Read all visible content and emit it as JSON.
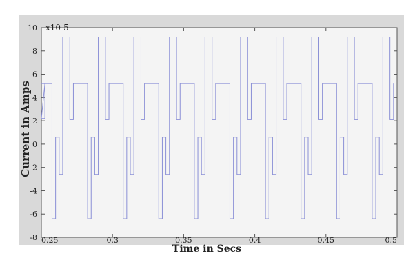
{
  "chart_data": {
    "type": "line",
    "title": "",
    "xlabel": "Time in Secs",
    "ylabel": "Current in Amps",
    "y_multiplier_label": "x10-5",
    "xlim": [
      0.25,
      0.5
    ],
    "ylim": [
      -8,
      10
    ],
    "x_ticks": [
      0.25,
      0.3,
      0.35,
      0.4,
      0.45,
      0.5
    ],
    "x_tick_labels": [
      "0.25",
      "0.3",
      "0.35",
      "0.4",
      "0.45",
      "0.5"
    ],
    "y_ticks": [
      -8,
      -6,
      -4,
      -2,
      0,
      2,
      4,
      6,
      8,
      10
    ],
    "y_tick_labels": [
      "-8",
      "-6",
      "-4",
      "-2",
      "0",
      "2",
      "4",
      "6",
      "8",
      "10"
    ],
    "grid": false,
    "legend": "none",
    "line_color": "#8a8fd6",
    "frame_bg": "#d9d9d9",
    "plot_bg": "#f4f4f4",
    "series": [
      {
        "points": [
          [
            0.25,
            5.2
          ],
          [
            0.2525,
            5.2
          ],
          [
            0.2525,
            2.2
          ],
          [
            0.25,
            2.2
          ]
        ],
        "period": 0.025,
        "start": 0.2525,
        "end": 0.5,
        "period_pattern": [
          [
            0.0,
            5.2
          ],
          [
            0.005,
            5.2
          ],
          [
            0.005,
            -6.4
          ],
          [
            0.0075,
            -6.4
          ],
          [
            0.0075,
            0.6
          ],
          [
            0.01,
            0.6
          ],
          [
            0.01,
            -2.6
          ],
          [
            0.0125,
            -2.6
          ],
          [
            0.0125,
            9.2
          ],
          [
            0.0175,
            9.2
          ],
          [
            0.0175,
            2.1
          ],
          [
            0.02,
            2.1
          ],
          [
            0.02,
            5.2
          ],
          [
            0.025,
            5.2
          ]
        ]
      }
    ]
  }
}
